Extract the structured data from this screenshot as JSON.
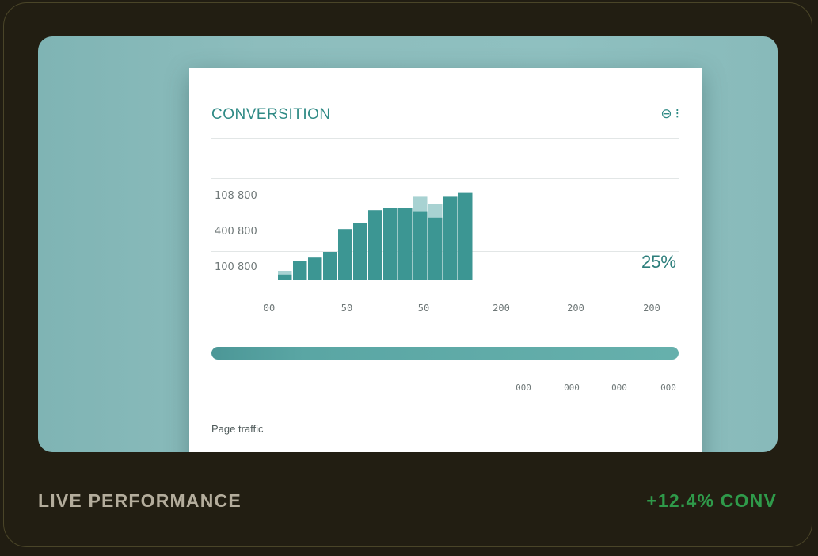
{
  "card": {
    "title": "CONVERSITION",
    "icons": [
      "circle-minus-icon",
      "menu-icon"
    ],
    "icon_glyphs": [
      "⊖",
      "⁝"
    ],
    "percent": "25%",
    "footer_label": "Page traffic"
  },
  "chart_data": {
    "type": "bar",
    "title": "",
    "ylabels": [
      "108 800",
      "400 800",
      "100 800"
    ],
    "xlabels": [
      "00",
      "50",
      "50",
      "200",
      "200",
      "200"
    ],
    "values": [
      3,
      10,
      12,
      15,
      27,
      30,
      37,
      38,
      38,
      36,
      33,
      44,
      46
    ],
    "overlay": [
      5,
      0,
      0,
      0,
      0,
      0,
      0,
      0,
      0,
      44,
      40,
      0,
      0
    ],
    "ylim": [
      0,
      50
    ],
    "colors": {
      "bar": "#3c9693",
      "overlay": "#a8d2d2"
    }
  },
  "progress": {
    "value": 1.0,
    "labels": [
      "000",
      "000",
      "000",
      "000"
    ]
  },
  "footer": {
    "left": "LIVE PERFORMANCE",
    "right": "+12.4% CONV"
  }
}
